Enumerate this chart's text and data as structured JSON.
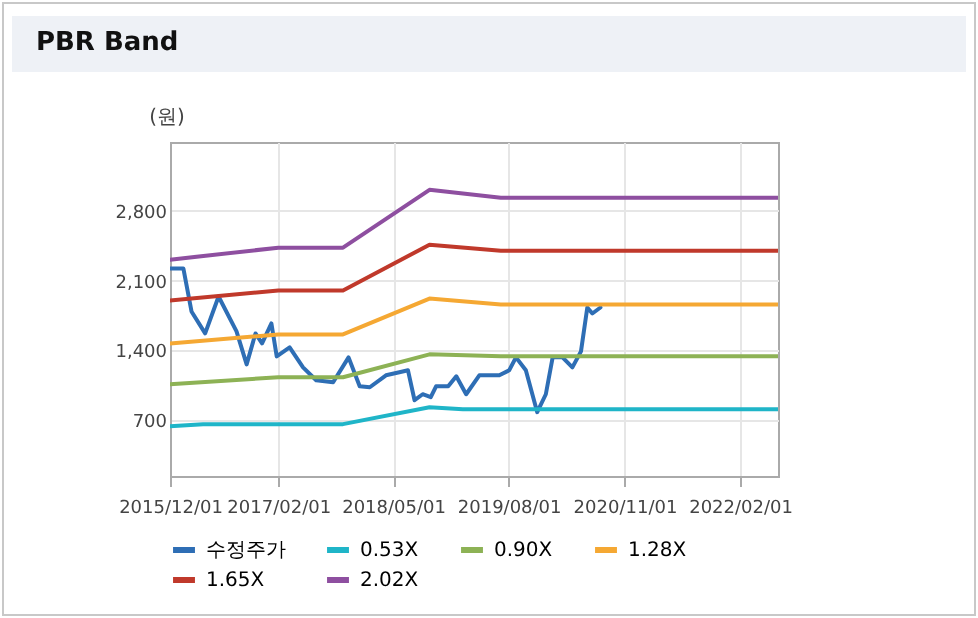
{
  "chart_data": {
    "type": "line",
    "title": "PBR Band",
    "ylabel": "(원)",
    "legend": "bottom",
    "grid": true,
    "line_style": "solid",
    "marker": "none",
    "xlim": [
      "2015-12-01",
      "2022-07-01"
    ],
    "xticks": [
      {
        "value": "2015-12-01",
        "label": "2015/12/01"
      },
      {
        "value": "2017-02-01",
        "label": "2017/02/01"
      },
      {
        "value": "2018-05-01",
        "label": "2018/05/01"
      },
      {
        "value": "2019-08-01",
        "label": "2019/08/01"
      },
      {
        "value": "2020-11-01",
        "label": "2020/11/01"
      },
      {
        "value": "2022-02-01",
        "label": "2022/02/01"
      }
    ],
    "ylim": [
      140,
      3490
    ],
    "yticks": [
      700,
      {
        "value": 1400,
        "label": "1,400"
      },
      {
        "value": 2100,
        "label": "2,100"
      },
      {
        "value": 2800,
        "label": "2,800"
      }
    ],
    "series": [
      {
        "name": "수정주가",
        "color": "#2e6eb5",
        "x": [
          "2015-12-01",
          "2016-01-23",
          "2016-02-24",
          "2016-04-18",
          "2016-06-10",
          "2016-08-20",
          "2016-09-29",
          "2016-11-03",
          "2016-11-29",
          "2017-01-05",
          "2017-01-26",
          "2017-03-18",
          "2017-05-10",
          "2017-07-01",
          "2017-09-06",
          "2017-11-06",
          "2017-12-20",
          "2018-01-29",
          "2018-04-03",
          "2018-05-26",
          "2018-06-29",
          "2018-07-25",
          "2018-08-26",
          "2018-09-27",
          "2018-10-18",
          "2018-12-05",
          "2019-01-06",
          "2019-02-14",
          "2019-04-07",
          "2019-06-25",
          "2019-08-03",
          "2019-08-30",
          "2019-10-08",
          "2019-11-22",
          "2019-12-26",
          "2020-01-22",
          "2020-03-01",
          "2020-04-09",
          "2020-05-13",
          "2020-06-07",
          "2020-06-27",
          "2020-07-29"
        ],
        "values": [
          2220,
          2220,
          1790,
          1570,
          1940,
          1590,
          1260,
          1570,
          1470,
          1670,
          1340,
          1430,
          1230,
          1100,
          1080,
          1330,
          1040,
          1030,
          1150,
          1180,
          1200,
          900,
          960,
          930,
          1040,
          1040,
          1140,
          960,
          1150,
          1150,
          1200,
          1330,
          1200,
          780,
          960,
          1330,
          1330,
          1230,
          1390,
          1830,
          1770,
          1830
        ]
      },
      {
        "name": "0.53X",
        "color": "#1fb5c8",
        "x": [
          "2015-12-01",
          "2016-04-10",
          "2017-10-15",
          "2018-09-22",
          "2019-02-01",
          "2022-07-01"
        ],
        "values": [
          640,
          660,
          660,
          830,
          810,
          810
        ]
      },
      {
        "name": "0.90X",
        "color": "#8db255",
        "x": [
          "2015-12-01",
          "2017-02-01",
          "2017-10-15",
          "2018-09-22",
          "2019-07-01",
          "2022-07-01"
        ],
        "values": [
          1060,
          1130,
          1130,
          1360,
          1340,
          1340
        ]
      },
      {
        "name": "1.28X",
        "color": "#f5a833",
        "x": [
          "2015-12-01",
          "2017-02-01",
          "2017-10-15",
          "2018-09-22",
          "2019-07-01",
          "2022-07-01"
        ],
        "values": [
          1470,
          1560,
          1560,
          1920,
          1860,
          1860
        ]
      },
      {
        "name": "1.65X",
        "color": "#c0392b",
        "x": [
          "2015-12-01",
          "2017-02-01",
          "2017-10-15",
          "2018-09-22",
          "2019-07-01",
          "2022-07-01"
        ],
        "values": [
          1900,
          2000,
          2000,
          2460,
          2400,
          2400
        ]
      },
      {
        "name": "2.02X",
        "color": "#8e4fa0",
        "x": [
          "2015-12-01",
          "2017-02-01",
          "2017-10-15",
          "2018-09-22",
          "2019-07-01",
          "2022-07-01"
        ],
        "values": [
          2310,
          2430,
          2430,
          3010,
          2930,
          2930
        ]
      }
    ]
  }
}
